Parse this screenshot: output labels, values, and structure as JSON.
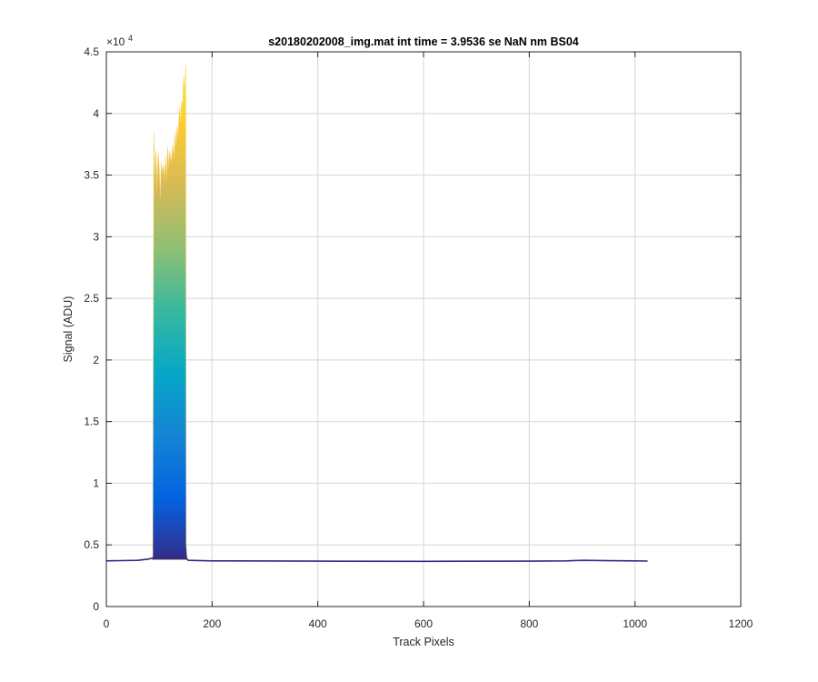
{
  "chart_data": {
    "type": "area",
    "title": "s20180202008_img.mat int time = 3.9536 se  NaN nm BS04",
    "xlabel": "Track Pixels",
    "ylabel": "Signal (ADU)",
    "xlim": [
      0,
      1200
    ],
    "ylim": [
      0,
      45000
    ],
    "y_exponent_label": "×10",
    "y_exponent_power": "4",
    "xticks": [
      0,
      200,
      400,
      600,
      800,
      1000,
      1200
    ],
    "xtick_labels": [
      "0",
      "200",
      "400",
      "600",
      "800",
      "1000",
      "1200"
    ],
    "yticks": [
      0,
      5000,
      10000,
      15000,
      20000,
      25000,
      30000,
      35000,
      40000,
      45000
    ],
    "ytick_labels": [
      "0",
      "0.5",
      "1",
      "1.5",
      "2",
      "2.5",
      "3",
      "3.5",
      "4",
      "4.5"
    ],
    "grid": true,
    "colormap": [
      "#352a87",
      "#0363e1",
      "#1485d4",
      "#06a7c6",
      "#38b99e",
      "#92bf73",
      "#d9ba56",
      "#fcce2e",
      "#f9fb0e"
    ],
    "baseline": {
      "x": [
        0,
        60,
        80,
        88,
        150,
        155,
        200,
        400,
        600,
        800,
        870,
        900,
        950,
        1000,
        1024
      ],
      "y": [
        3700,
        3750,
        3850,
        3950,
        3950,
        3750,
        3700,
        3680,
        3670,
        3680,
        3700,
        3750,
        3720,
        3700,
        3690
      ]
    },
    "peak": {
      "x": [
        88,
        90,
        92,
        94,
        96,
        98,
        100,
        102,
        104,
        106,
        108,
        110,
        112,
        114,
        116,
        118,
        120,
        122,
        124,
        126,
        128,
        130,
        132,
        134,
        136,
        138,
        140,
        142,
        144,
        146,
        148,
        150
      ],
      "y": [
        5000,
        38500,
        34500,
        37000,
        33500,
        36800,
        35500,
        33000,
        36000,
        35000,
        35800,
        34500,
        36500,
        34500,
        37300,
        35500,
        37000,
        36000,
        36500,
        37500,
        36000,
        38500,
        37000,
        39000,
        38000,
        40500,
        39000,
        41000,
        40000,
        43000,
        41500,
        44000
      ]
    }
  }
}
